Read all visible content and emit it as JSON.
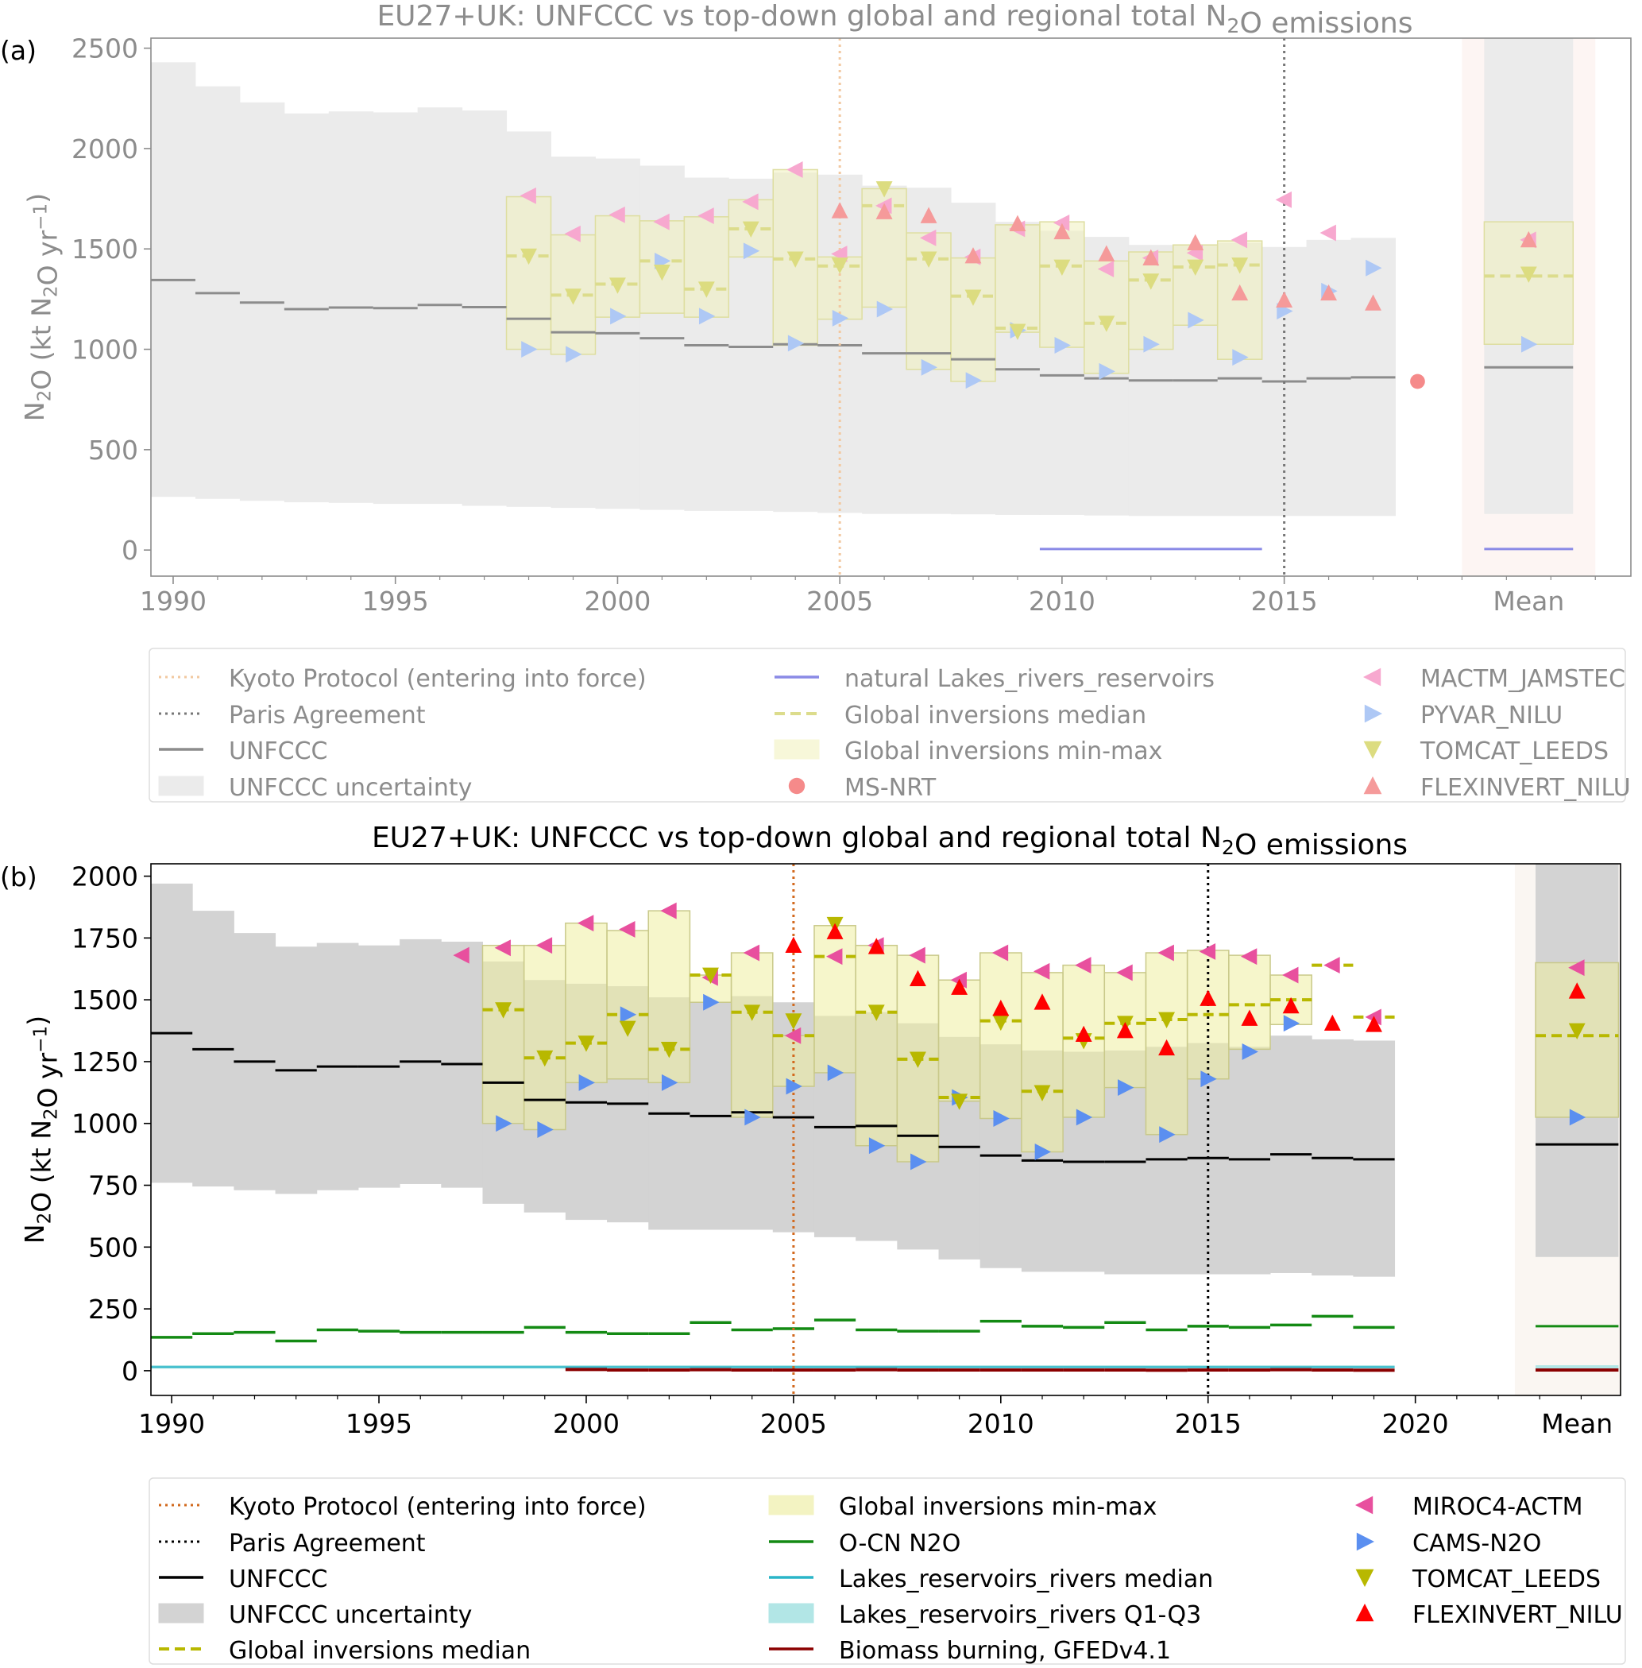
{
  "chart_data": [
    {
      "panel_label": "(a)",
      "type": "line",
      "title": "EU27+UK: UNFCCC vs top-down global and regional total N₂O emissions",
      "ylabel": "N₂O (kt N₂O yr⁻¹)",
      "xlabel": "",
      "xlim": [
        1989.5,
        2022.8
      ],
      "ylim": [
        -130,
        2550
      ],
      "xticks": [
        1990,
        1995,
        2000,
        2005,
        2010,
        2015
      ],
      "xtick_labels": [
        "1990",
        "1995",
        "2000",
        "2005",
        "2010",
        "2015"
      ],
      "yticks": [
        0,
        500,
        1000,
        1500,
        2000,
        2500
      ],
      "ytick_labels": [
        "0",
        "500",
        "1000",
        "1500",
        "2000",
        "2500"
      ],
      "mean_label": "Mean",
      "mean_position": 2020.5,
      "vlines": [
        {
          "name": "Kyoto Protocol (entering into force)",
          "x": 2005,
          "color": "#f2c8a0"
        },
        {
          "name": "Paris Agreement",
          "x": 2015,
          "color": "#777777"
        }
      ],
      "years": [
        1990,
        1991,
        1992,
        1993,
        1994,
        1995,
        1996,
        1997,
        1998,
        1999,
        2000,
        2001,
        2002,
        2003,
        2004,
        2005,
        2006,
        2007,
        2008,
        2009,
        2010,
        2011,
        2012,
        2013,
        2014,
        2015,
        2016,
        2017
      ],
      "unfccc": [
        1345,
        1280,
        1233,
        1200,
        1208,
        1205,
        1221,
        1210,
        1152,
        1085,
        1080,
        1055,
        1020,
        1012,
        1025,
        1020,
        980,
        980,
        950,
        900,
        870,
        855,
        845,
        845,
        855,
        840,
        855,
        860
      ],
      "unfccc_unc_low": [
        265,
        255,
        245,
        238,
        235,
        230,
        230,
        220,
        215,
        210,
        205,
        200,
        195,
        195,
        190,
        185,
        180,
        180,
        178,
        175,
        175,
        172,
        170,
        170,
        170,
        170,
        170,
        170
      ],
      "unfccc_unc_high": [
        2430,
        2310,
        2230,
        2175,
        2185,
        2180,
        2205,
        2190,
        2085,
        1960,
        1950,
        1915,
        1855,
        1850,
        1880,
        1870,
        1815,
        1805,
        1730,
        1635,
        1590,
        1560,
        1520,
        1520,
        1530,
        1510,
        1545,
        1555
      ],
      "inv_years": [
        1998,
        1999,
        2000,
        2001,
        2002,
        2003,
        2004,
        2005,
        2006,
        2007,
        2008,
        2009,
        2010,
        2011,
        2012,
        2013,
        2014
      ],
      "inv_median": [
        1465,
        1270,
        1325,
        1440,
        1300,
        1600,
        1450,
        1415,
        1715,
        1450,
        1265,
        1105,
        1415,
        1130,
        1345,
        1410,
        1420
      ],
      "inv_min": [
        1000,
        975,
        1160,
        1180,
        1160,
        1460,
        1020,
        1150,
        1210,
        900,
        840,
        1085,
        1010,
        880,
        1000,
        1120,
        950
      ],
      "inv_max": [
        1760,
        1570,
        1665,
        1640,
        1660,
        1745,
        1895,
        1460,
        1800,
        1580,
        1455,
        1620,
        1635,
        1440,
        1485,
        1520,
        1540
      ],
      "lakes": {
        "x": [
          2009.5,
          2014.5
        ],
        "y": 5
      },
      "ms_nrt": {
        "x": 2018,
        "y": 840
      },
      "series": [
        {
          "name": "MACTM_JAMSTEC",
          "x": [
            1998,
            1999,
            2000,
            2001,
            2002,
            2003,
            2004,
            2005,
            2006,
            2007,
            2008,
            2009,
            2010,
            2011,
            2012,
            2013,
            2014,
            2015,
            2016
          ],
          "values": [
            1765,
            1575,
            1670,
            1635,
            1665,
            1735,
            1895,
            1475,
            1715,
            1555,
            1460,
            1600,
            1630,
            1400,
            1455,
            1480,
            1545,
            1745,
            1580
          ]
        },
        {
          "name": "PYVAR_NILU",
          "x": [
            1998,
            1999,
            2000,
            2001,
            2002,
            2003,
            2004,
            2005,
            2006,
            2007,
            2008,
            2009,
            2010,
            2011,
            2012,
            2013,
            2014,
            2015,
            2016,
            2017
          ],
          "values": [
            1000,
            975,
            1165,
            1440,
            1165,
            1490,
            1030,
            1155,
            1200,
            910,
            845,
            1095,
            1020,
            890,
            1025,
            1145,
            960,
            1190,
            1290,
            1405
          ]
        },
        {
          "name": "TOMCAT_LEEDS",
          "x": [
            1998,
            1999,
            2000,
            2001,
            2002,
            2003,
            2004,
            2005,
            2006,
            2007,
            2008,
            2009,
            2010,
            2011,
            2012,
            2013,
            2014
          ],
          "values": [
            1465,
            1265,
            1320,
            1385,
            1300,
            1600,
            1450,
            1420,
            1800,
            1450,
            1260,
            1090,
            1410,
            1130,
            1340,
            1410,
            1420
          ]
        },
        {
          "name": "FLEXINVERT_NILU",
          "x": [
            2005,
            2006,
            2007,
            2008,
            2009,
            2010,
            2011,
            2012,
            2013,
            2014,
            2015,
            2016,
            2017
          ],
          "values": [
            1690,
            1685,
            1665,
            1465,
            1625,
            1585,
            1475,
            1455,
            1530,
            1280,
            1245,
            1280,
            1230
          ]
        }
      ],
      "mean": {
        "unfccc": 910,
        "unc_low": 180,
        "unc_high": 2550,
        "inv_median": 1365,
        "inv_min": 1025,
        "inv_max": 1635,
        "lakes": 5,
        "MACTM_JAMSTEC": 1545,
        "PYVAR_NILU": 1025,
        "TOMCAT_LEEDS": 1375,
        "FLEXINVERT_NILU": 1545
      },
      "legend": [
        {
          "label": "Kyoto Protocol (entering into force)",
          "kind": "dotline",
          "color": "#f2c8a0"
        },
        {
          "label": "Paris Agreement",
          "kind": "dotline",
          "color": "#777777"
        },
        {
          "label": "UNFCCC",
          "kind": "line",
          "color": "#8c8c8c"
        },
        {
          "label": "UNFCCC uncertainty",
          "kind": "patch",
          "color": "#ebebeb"
        },
        {
          "label": "natural Lakes_rivers_reservoirs",
          "kind": "line",
          "color": "#8a8ae6"
        },
        {
          "label": "Global inversions median",
          "kind": "dash",
          "color": "#dcdc8c"
        },
        {
          "label": "Global inversions min-max",
          "kind": "patch",
          "color": "#f7f7d9"
        },
        {
          "label": "MS-NRT",
          "kind": "circle",
          "color": "#f58a8a"
        },
        {
          "label": "MACTM_JAMSTEC",
          "kind": "tri-left",
          "color": "#f7a8cf"
        },
        {
          "label": "PYVAR_NILU",
          "kind": "tri-right",
          "color": "#aec8f5"
        },
        {
          "label": "TOMCAT_LEEDS",
          "kind": "tri-down",
          "color": "#dcdc80"
        },
        {
          "label": "FLEXINVERT_NILU",
          "kind": "tri-up",
          "color": "#f59a9a"
        }
      ]
    },
    {
      "panel_label": "(b)",
      "type": "line",
      "title": "EU27+UK: UNFCCC vs top-down global and regional total N₂O emissions",
      "ylabel": "N₂O (kt N₂O yr⁻¹)",
      "xlabel": "",
      "xlim": [
        1989.5,
        2024.95
      ],
      "ylim": [
        -100,
        2050
      ],
      "xticks": [
        1990,
        1995,
        2000,
        2005,
        2010,
        2015,
        2020
      ],
      "xtick_labels": [
        "1990",
        "1995",
        "2000",
        "2005",
        "2010",
        "2015",
        "2020"
      ],
      "yticks": [
        0,
        250,
        500,
        750,
        1000,
        1250,
        1500,
        1750,
        2000
      ],
      "ytick_labels": [
        "0",
        "250",
        "500",
        "750",
        "1000",
        "1250",
        "1500",
        "1750",
        "2000"
      ],
      "mean_label": "Mean",
      "mean_position": 2023.9,
      "vlines": [
        {
          "name": "Kyoto Protocol (entering into force)",
          "x": 2005,
          "color": "#d2691e"
        },
        {
          "name": "Paris Agreement",
          "x": 2015,
          "color": "#000000"
        }
      ],
      "years": [
        1990,
        1991,
        1992,
        1993,
        1994,
        1995,
        1996,
        1997,
        1998,
        1999,
        2000,
        2001,
        2002,
        2003,
        2004,
        2005,
        2006,
        2007,
        2008,
        2009,
        2010,
        2011,
        2012,
        2013,
        2014,
        2015,
        2016,
        2017,
        2018,
        2019
      ],
      "unfccc": [
        1365,
        1300,
        1250,
        1215,
        1230,
        1230,
        1250,
        1240,
        1165,
        1095,
        1085,
        1080,
        1040,
        1030,
        1045,
        1025,
        985,
        990,
        950,
        905,
        870,
        850,
        845,
        845,
        855,
        860,
        855,
        875,
        860,
        855
      ],
      "unfccc_unc_low": [
        760,
        745,
        730,
        715,
        730,
        740,
        755,
        740,
        675,
        640,
        610,
        600,
        570,
        570,
        570,
        560,
        540,
        525,
        490,
        450,
        415,
        400,
        400,
        390,
        390,
        390,
        390,
        395,
        385,
        380
      ],
      "unfccc_unc_high": [
        1970,
        1860,
        1770,
        1715,
        1730,
        1720,
        1745,
        1735,
        1655,
        1580,
        1565,
        1555,
        1510,
        1490,
        1515,
        1490,
        1435,
        1450,
        1405,
        1350,
        1320,
        1295,
        1290,
        1295,
        1310,
        1325,
        1310,
        1355,
        1340,
        1335
      ],
      "inv_years": [
        1998,
        1999,
        2000,
        2001,
        2002,
        2003,
        2004,
        2005,
        2006,
        2007,
        2008,
        2009,
        2010,
        2011,
        2012,
        2013,
        2014,
        2015,
        2016,
        2017,
        2018,
        2019
      ],
      "inv_median": [
        1460,
        1265,
        1325,
        1440,
        1300,
        1600,
        1450,
        1355,
        1675,
        1450,
        1260,
        1105,
        1415,
        1130,
        1345,
        1405,
        1420,
        1440,
        1480,
        1500,
        1640,
        1430
      ],
      "inv_min": [
        1000,
        975,
        1165,
        1180,
        1165,
        1490,
        1025,
        1150,
        1205,
        910,
        845,
        1090,
        1020,
        885,
        1025,
        1145,
        955,
        1180,
        1300,
        1400,
        1640,
        1430
      ],
      "inv_max": [
        1720,
        1720,
        1810,
        1780,
        1860,
        1600,
        1690,
        1355,
        1800,
        1720,
        1680,
        1580,
        1690,
        1610,
        1640,
        1610,
        1690,
        1700,
        1680,
        1600,
        1640,
        1430
      ],
      "ocn": [
        135,
        150,
        155,
        120,
        165,
        160,
        155,
        155,
        155,
        175,
        155,
        150,
        150,
        195,
        165,
        170,
        205,
        165,
        160,
        160,
        200,
        180,
        175,
        195,
        165,
        180,
        175,
        185,
        220,
        175
      ],
      "lakes_median": 15,
      "lakes_q1": 8,
      "lakes_q3": 22,
      "biomass_burning": {
        "years": [
          2000,
          2001,
          2002,
          2003,
          2004,
          2005,
          2006,
          2007,
          2008,
          2009,
          2010,
          2011,
          2012,
          2013,
          2014,
          2015,
          2016,
          2017,
          2018,
          2019
        ],
        "values": [
          5,
          3,
          3,
          4,
          3,
          3,
          3,
          4,
          3,
          3,
          3,
          3,
          3,
          3,
          2,
          3,
          3,
          4,
          3,
          2
        ]
      },
      "series": [
        {
          "name": "MIROC4-ACTM",
          "x": [
            1997,
            1998,
            1999,
            2000,
            2001,
            2002,
            2003,
            2004,
            2005,
            2006,
            2007,
            2008,
            2009,
            2010,
            2011,
            2012,
            2013,
            2014,
            2015,
            2016,
            2017,
            2018,
            2019
          ],
          "values": [
            1680,
            1710,
            1720,
            1810,
            1785,
            1860,
            1590,
            1690,
            1355,
            1675,
            1720,
            1680,
            1580,
            1690,
            1615,
            1640,
            1610,
            1690,
            1695,
            1675,
            1600,
            1640,
            1430
          ]
        },
        {
          "name": "CAMS-N2O",
          "x": [
            1998,
            1999,
            2000,
            2001,
            2002,
            2003,
            2004,
            2005,
            2006,
            2007,
            2008,
            2009,
            2010,
            2011,
            2012,
            2013,
            2014,
            2015,
            2016,
            2017
          ],
          "values": [
            1000,
            975,
            1165,
            1440,
            1165,
            1490,
            1025,
            1150,
            1205,
            910,
            845,
            1105,
            1020,
            885,
            1025,
            1145,
            955,
            1180,
            1290,
            1405
          ]
        },
        {
          "name": "TOMCAT_LEEDS",
          "x": [
            1998,
            1999,
            2000,
            2001,
            2002,
            2003,
            2004,
            2005,
            2006,
            2007,
            2008,
            2009,
            2010,
            2011,
            2012,
            2013,
            2014
          ],
          "values": [
            1460,
            1265,
            1325,
            1385,
            1300,
            1600,
            1450,
            1415,
            1805,
            1450,
            1260,
            1090,
            1410,
            1125,
            1335,
            1405,
            1420
          ]
        },
        {
          "name": "FLEXINVERT_NILU",
          "x": [
            2005,
            2006,
            2007,
            2008,
            2009,
            2010,
            2011,
            2012,
            2013,
            2014,
            2015,
            2016,
            2017,
            2018,
            2019
          ],
          "values": [
            1720,
            1775,
            1715,
            1585,
            1550,
            1465,
            1490,
            1360,
            1375,
            1305,
            1505,
            1425,
            1475,
            1405,
            1400
          ]
        }
      ],
      "mean": {
        "unfccc": 915,
        "unc_low": 460,
        "unc_high": 2050,
        "inv_median": 1355,
        "inv_min": 1025,
        "inv_max": 1650,
        "ocn": 180,
        "lakes": 15,
        "biomass": 3,
        "MIROC4-ACTM": 1630,
        "CAMS-N2O": 1025,
        "TOMCAT_LEEDS": 1375,
        "FLEXINVERT_NILU": 1535
      },
      "legend": [
        {
          "label": "Kyoto Protocol (entering into force)",
          "kind": "dotline",
          "color": "#d2691e"
        },
        {
          "label": "Paris Agreement",
          "kind": "dotline",
          "color": "#000000"
        },
        {
          "label": "UNFCCC",
          "kind": "line",
          "color": "#000000"
        },
        {
          "label": "UNFCCC uncertainty",
          "kind": "patch",
          "color": "#d3d3d3"
        },
        {
          "label": "Global inversions median",
          "kind": "dash",
          "color": "#b8b800"
        },
        {
          "label": "Global inversions min-max",
          "kind": "patch",
          "color": "#f3f3c2"
        },
        {
          "label": "O-CN N2O",
          "kind": "line",
          "color": "#138a13"
        },
        {
          "label": "Lakes_reservoirs_rivers median",
          "kind": "line",
          "color": "#2ab5c8"
        },
        {
          "label": "Lakes_reservoirs_rivers Q1-Q3",
          "kind": "patch",
          "color": "#b2e6e6"
        },
        {
          "label": "Biomass burning, GFEDv4.1",
          "kind": "line",
          "color": "#8b0000"
        },
        {
          "label": "MIROC4-ACTM",
          "kind": "tri-left",
          "color": "#e8509e"
        },
        {
          "label": "CAMS-N2O",
          "kind": "tri-right",
          "color": "#5b8ff0"
        },
        {
          "label": "TOMCAT_LEEDS",
          "kind": "tri-down",
          "color": "#b8b800"
        },
        {
          "label": "FLEXINVERT_NILU",
          "kind": "tri-up",
          "color": "#ff0000"
        }
      ]
    }
  ]
}
